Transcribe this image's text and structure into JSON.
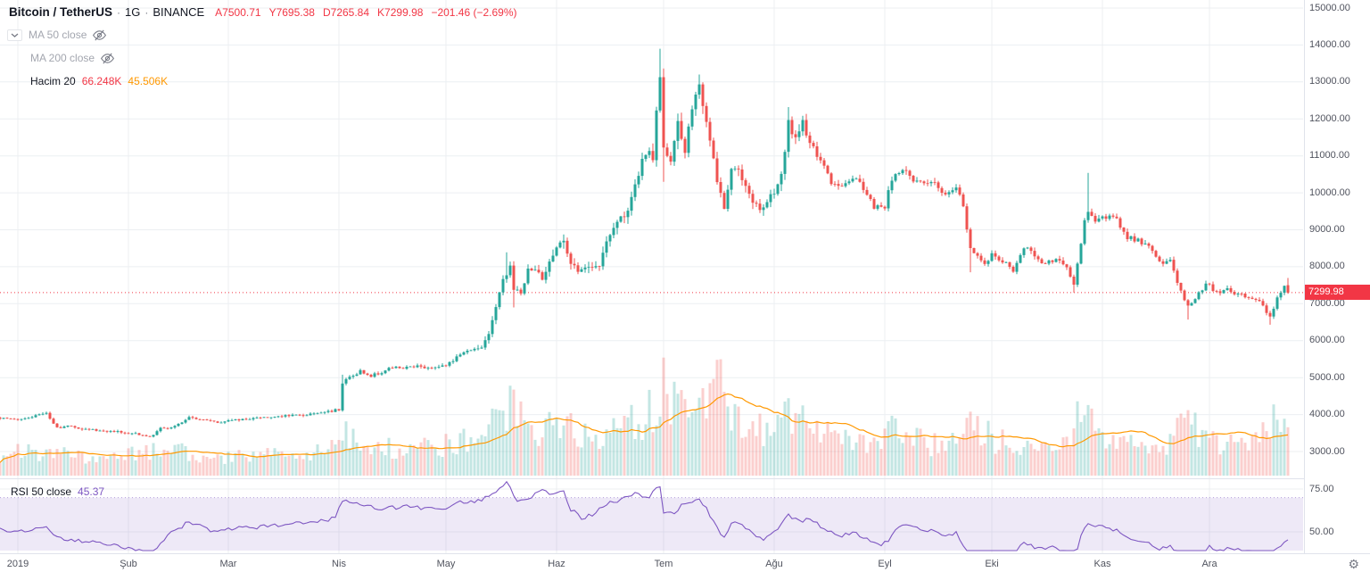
{
  "header": {
    "symbol": "Bitcoin / TetherUS",
    "separator": "·",
    "interval": "1G",
    "exchange": "BINANCE",
    "ohlc": [
      {
        "label": "A",
        "value": "7500.71"
      },
      {
        "label": "Y",
        "value": "7695.38"
      },
      {
        "label": "D",
        "value": "7265.84"
      },
      {
        "label": "K",
        "value": "7299.98"
      }
    ],
    "change": "−201.46 (−2.69%)"
  },
  "legend": {
    "ma50_label": "MA 50 close",
    "ma200_label": "MA 200 close",
    "volume_label": "Hacim 20",
    "volume_value": "66.248K",
    "volume_ma_value": "45.506K"
  },
  "rsi_legend": {
    "label": "RSI 50 close",
    "value": "45.37"
  },
  "price_axis": {
    "last_price": "7299.98"
  },
  "colors": {
    "up": "#26a69a",
    "down": "#ef5350",
    "vol_up": "rgba(38,166,154,0.28)",
    "vol_down": "rgba(239,83,80,0.28)",
    "vol_ma": "#ff9800",
    "rsi_line": "#7e57c2",
    "rsi_band": "rgba(126,87,194,0.13)",
    "rsi_band_edge": "rgba(126,87,194,0.55)",
    "grid": "#eceff2",
    "axis_border": "#e0e3eb",
    "last_price": "#f23645",
    "text": "#131722",
    "muted": "#787b86"
  },
  "chart_data": {
    "type": "candlestick+volume+rsi",
    "title": "Bitcoin / TetherUS 1G BINANCE, year 2019 daily candles",
    "symbol": "BTC/USDT",
    "interval": "1G",
    "exchange": "BINANCE",
    "price_range": [
      3000,
      15000
    ],
    "price_ticks": [
      15000,
      14000,
      13000,
      12000,
      11000,
      10000,
      9000,
      8000,
      7000,
      6000,
      5000,
      4000,
      3000
    ],
    "rsi_ticks": [
      75,
      50
    ],
    "rsi_band": [
      30,
      70
    ],
    "day_range": [
      -5,
      356
    ],
    "months": [
      {
        "label": "2019",
        "day": 0
      },
      {
        "label": "Şub",
        "day": 31
      },
      {
        "label": "Mar",
        "day": 59
      },
      {
        "label": "Nis",
        "day": 90
      },
      {
        "label": "May",
        "day": 120
      },
      {
        "label": "Haz",
        "day": 151
      },
      {
        "label": "Tem",
        "day": 181
      },
      {
        "label": "Ağu",
        "day": 212
      },
      {
        "label": "Eyl",
        "day": 243
      },
      {
        "label": "Eki",
        "day": 273
      },
      {
        "label": "Kas",
        "day": 304
      },
      {
        "label": "Ara",
        "day": 334
      }
    ],
    "last_ohlc": [
      7500.71,
      7695.38,
      7265.84,
      7299.98
    ],
    "last_volume_k": 66.248,
    "volume_ma_last_k": 45.506,
    "rsi_last": 45.37,
    "price_anchors": [
      [
        -5,
        3900
      ],
      [
        0,
        3850
      ],
      [
        4,
        3950
      ],
      [
        8,
        4030
      ],
      [
        11,
        3650
      ],
      [
        14,
        3680
      ],
      [
        17,
        3620
      ],
      [
        20,
        3580
      ],
      [
        24,
        3560
      ],
      [
        28,
        3540
      ],
      [
        33,
        3480
      ],
      [
        37,
        3400
      ],
      [
        40,
        3620
      ],
      [
        44,
        3680
      ],
      [
        48,
        3920
      ],
      [
        52,
        3850
      ],
      [
        56,
        3800
      ],
      [
        60,
        3840
      ],
      [
        64,
        3880
      ],
      [
        68,
        3900
      ],
      [
        72,
        3940
      ],
      [
        76,
        3960
      ],
      [
        80,
        4000
      ],
      [
        84,
        4020
      ],
      [
        88,
        4090
      ],
      [
        90,
        4140
      ],
      [
        91,
        4850
      ],
      [
        93,
        5000
      ],
      [
        96,
        5180
      ],
      [
        99,
        5060
      ],
      [
        102,
        5150
      ],
      [
        105,
        5280
      ],
      [
        108,
        5220
      ],
      [
        111,
        5320
      ],
      [
        114,
        5280
      ],
      [
        117,
        5240
      ],
      [
        119,
        5300
      ],
      [
        122,
        5480
      ],
      [
        125,
        5720
      ],
      [
        128,
        5790
      ],
      [
        130,
        5850
      ],
      [
        132,
        6200
      ],
      [
        134,
        6900
      ],
      [
        136,
        7650
      ],
      [
        138,
        8000
      ],
      [
        139,
        7350
      ],
      [
        141,
        7300
      ],
      [
        143,
        7900
      ],
      [
        145,
        7980
      ],
      [
        147,
        7700
      ],
      [
        149,
        8150
      ],
      [
        151,
        8560
      ],
      [
        153,
        8720
      ],
      [
        155,
        8100
      ],
      [
        157,
        7850
      ],
      [
        159,
        7950
      ],
      [
        161,
        8000
      ],
      [
        163,
        7980
      ],
      [
        165,
        8700
      ],
      [
        167,
        9050
      ],
      [
        169,
        9300
      ],
      [
        171,
        9480
      ],
      [
        173,
        10200
      ],
      [
        175,
        10850
      ],
      [
        177,
        11050
      ],
      [
        178,
        10850
      ],
      [
        179,
        12300
      ],
      [
        180,
        13100
      ],
      [
        181,
        11150
      ],
      [
        183,
        10850
      ],
      [
        185,
        11950
      ],
      [
        187,
        11150
      ],
      [
        189,
        12350
      ],
      [
        191,
        12950
      ],
      [
        193,
        11850
      ],
      [
        195,
        11000
      ],
      [
        196,
        10300
      ],
      [
        198,
        9550
      ],
      [
        200,
        10650
      ],
      [
        202,
        10550
      ],
      [
        205,
        9900
      ],
      [
        208,
        9550
      ],
      [
        210,
        9800
      ],
      [
        212,
        10050
      ],
      [
        214,
        10450
      ],
      [
        216,
        11900
      ],
      [
        218,
        11450
      ],
      [
        220,
        11900
      ],
      [
        222,
        11350
      ],
      [
        225,
        10850
      ],
      [
        228,
        10300
      ],
      [
        231,
        10150
      ],
      [
        234,
        10400
      ],
      [
        237,
        10150
      ],
      [
        240,
        9600
      ],
      [
        243,
        9650
      ],
      [
        245,
        10350
      ],
      [
        248,
        10600
      ],
      [
        251,
        10350
      ],
      [
        254,
        10300
      ],
      [
        257,
        10200
      ],
      [
        260,
        10000
      ],
      [
        263,
        10150
      ],
      [
        265,
        9700
      ],
      [
        267,
        8450
      ],
      [
        269,
        8250
      ],
      [
        271,
        8050
      ],
      [
        273,
        8300
      ],
      [
        276,
        8150
      ],
      [
        279,
        7900
      ],
      [
        282,
        8550
      ],
      [
        285,
        8300
      ],
      [
        288,
        8050
      ],
      [
        291,
        8250
      ],
      [
        294,
        8000
      ],
      [
        296,
        7500
      ],
      [
        298,
        8650
      ],
      [
        299,
        9250
      ],
      [
        300,
        9500
      ],
      [
        302,
        9200
      ],
      [
        305,
        9350
      ],
      [
        308,
        9250
      ],
      [
        311,
        8800
      ],
      [
        314,
        8700
      ],
      [
        317,
        8500
      ],
      [
        320,
        8100
      ],
      [
        323,
        8150
      ],
      [
        326,
        7300
      ],
      [
        328,
        6950
      ],
      [
        330,
        7150
      ],
      [
        333,
        7550
      ],
      [
        336,
        7300
      ],
      [
        339,
        7400
      ],
      [
        342,
        7250
      ],
      [
        345,
        7200
      ],
      [
        348,
        7100
      ],
      [
        351,
        6650
      ],
      [
        353,
        7150
      ],
      [
        355,
        7480
      ],
      [
        356,
        7299.98
      ]
    ],
    "high_overrides": {
      "91": 5080,
      "137": 8390,
      "180": 13900,
      "191": 13200,
      "216": 12320,
      "300": 10540
    },
    "low_overrides": {
      "139": 6900,
      "181": 10300,
      "267": 7850,
      "296": 7300,
      "328": 6570,
      "351": 6430
    },
    "volume_anchors_k": [
      [
        -5,
        30
      ],
      [
        5,
        33
      ],
      [
        12,
        28
      ],
      [
        20,
        26
      ],
      [
        28,
        23
      ],
      [
        37,
        35
      ],
      [
        45,
        33
      ],
      [
        52,
        27
      ],
      [
        60,
        26
      ],
      [
        70,
        28
      ],
      [
        80,
        30
      ],
      [
        89,
        37
      ],
      [
        91,
        65
      ],
      [
        95,
        44
      ],
      [
        100,
        40
      ],
      [
        106,
        37
      ],
      [
        112,
        38
      ],
      [
        118,
        41
      ],
      [
        122,
        44
      ],
      [
        127,
        54
      ],
      [
        131,
        63
      ],
      [
        134,
        77
      ],
      [
        137,
        100
      ],
      [
        139,
        88
      ],
      [
        142,
        70
      ],
      [
        146,
        60
      ],
      [
        150,
        68
      ],
      [
        154,
        63
      ],
      [
        158,
        56
      ],
      [
        163,
        54
      ],
      [
        167,
        63
      ],
      [
        172,
        70
      ],
      [
        176,
        79
      ],
      [
        179,
        107
      ],
      [
        180,
        126
      ],
      [
        182,
        114
      ],
      [
        185,
        98
      ],
      [
        188,
        91
      ],
      [
        191,
        100
      ],
      [
        194,
        112
      ],
      [
        196,
        163
      ],
      [
        198,
        121
      ],
      [
        200,
        100
      ],
      [
        203,
        74
      ],
      [
        207,
        63
      ],
      [
        211,
        65
      ],
      [
        215,
        81
      ],
      [
        219,
        72
      ],
      [
        224,
        65
      ],
      [
        230,
        60
      ],
      [
        236,
        51
      ],
      [
        241,
        49
      ],
      [
        245,
        60
      ],
      [
        250,
        49
      ],
      [
        256,
        44
      ],
      [
        261,
        47
      ],
      [
        265,
        56
      ],
      [
        267,
        91
      ],
      [
        270,
        63
      ],
      [
        274,
        49
      ],
      [
        279,
        44
      ],
      [
        285,
        41
      ],
      [
        291,
        38
      ],
      [
        296,
        49
      ],
      [
        298,
        100
      ],
      [
        300,
        91
      ],
      [
        303,
        60
      ],
      [
        308,
        49
      ],
      [
        313,
        44
      ],
      [
        318,
        43
      ],
      [
        323,
        47
      ],
      [
        326,
        72
      ],
      [
        329,
        67
      ],
      [
        333,
        54
      ],
      [
        337,
        44
      ],
      [
        341,
        40
      ],
      [
        345,
        38
      ],
      [
        349,
        54
      ],
      [
        352,
        91
      ],
      [
        354,
        61
      ],
      [
        356,
        66.248
      ]
    ],
    "rsi_anchors": [
      [
        -5,
        52
      ],
      [
        0,
        50
      ],
      [
        8,
        52
      ],
      [
        12,
        46
      ],
      [
        20,
        44
      ],
      [
        28,
        42
      ],
      [
        37,
        37
      ],
      [
        42,
        48
      ],
      [
        48,
        56
      ],
      [
        54,
        51
      ],
      [
        60,
        52
      ],
      [
        68,
        53
      ],
      [
        76,
        55
      ],
      [
        84,
        56
      ],
      [
        89,
        58
      ],
      [
        91,
        68
      ],
      [
        96,
        66
      ],
      [
        102,
        63
      ],
      [
        108,
        65
      ],
      [
        114,
        64
      ],
      [
        119,
        63
      ],
      [
        124,
        67
      ],
      [
        129,
        68
      ],
      [
        134,
        73
      ],
      [
        137,
        79
      ],
      [
        140,
        67
      ],
      [
        144,
        71
      ],
      [
        147,
        75
      ],
      [
        150,
        72
      ],
      [
        153,
        73
      ],
      [
        155,
        63
      ],
      [
        158,
        58
      ],
      [
        161,
        60
      ],
      [
        165,
        66
      ],
      [
        169,
        69
      ],
      [
        173,
        72
      ],
      [
        177,
        71
      ],
      [
        180,
        77
      ],
      [
        181,
        60
      ],
      [
        184,
        61
      ],
      [
        186,
        65
      ],
      [
        189,
        67
      ],
      [
        191,
        70
      ],
      [
        194,
        60
      ],
      [
        196,
        52
      ],
      [
        198,
        46
      ],
      [
        200,
        55
      ],
      [
        203,
        54
      ],
      [
        206,
        49
      ],
      [
        209,
        46
      ],
      [
        212,
        50
      ],
      [
        216,
        60
      ],
      [
        219,
        56
      ],
      [
        222,
        58
      ],
      [
        226,
        52
      ],
      [
        230,
        47
      ],
      [
        234,
        50
      ],
      [
        238,
        46
      ],
      [
        241,
        42
      ],
      [
        244,
        45
      ],
      [
        246,
        52
      ],
      [
        249,
        54
      ],
      [
        253,
        51
      ],
      [
        257,
        50
      ],
      [
        260,
        47
      ],
      [
        263,
        49
      ],
      [
        266,
        38
      ],
      [
        268,
        34
      ],
      [
        271,
        33
      ],
      [
        274,
        37
      ],
      [
        278,
        35
      ],
      [
        282,
        43
      ],
      [
        286,
        40
      ],
      [
        290,
        41
      ],
      [
        294,
        37
      ],
      [
        296,
        33
      ],
      [
        298,
        48
      ],
      [
        300,
        55
      ],
      [
        304,
        53
      ],
      [
        308,
        51
      ],
      [
        312,
        46
      ],
      [
        316,
        44
      ],
      [
        320,
        40
      ],
      [
        323,
        41
      ],
      [
        326,
        33
      ],
      [
        328,
        30
      ],
      [
        331,
        35
      ],
      [
        334,
        41
      ],
      [
        337,
        39
      ],
      [
        340,
        41
      ],
      [
        343,
        39
      ],
      [
        346,
        38
      ],
      [
        349,
        35
      ],
      [
        351,
        30
      ],
      [
        353,
        40
      ],
      [
        355,
        44
      ],
      [
        356,
        45.37
      ]
    ]
  }
}
